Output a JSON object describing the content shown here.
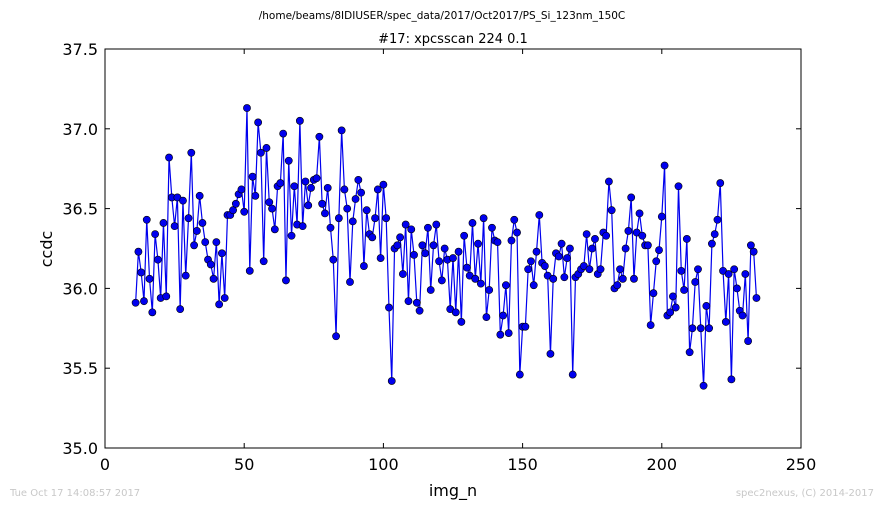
{
  "chart_data": {
    "type": "line",
    "suptitle": "/home/beams/8IDIUSER/spec_data/2017/Oct2017/PS_Si_123nm_150C",
    "title": "#17: xpcsscan 224 0.1",
    "xlabel": "img_n",
    "ylabel": "ccdc",
    "xlim": [
      0,
      250
    ],
    "ylim": [
      35.0,
      37.5
    ],
    "xticks": [
      0,
      50,
      100,
      150,
      200,
      250
    ],
    "xtick_labels": [
      "0",
      "50",
      "100",
      "150",
      "200",
      "250"
    ],
    "yticks": [
      35.0,
      35.5,
      36.0,
      36.5,
      37.0,
      37.5
    ],
    "ytick_labels": [
      "35.0",
      "35.5",
      "36.0",
      "36.5",
      "37.0",
      "37.5"
    ],
    "grid": false,
    "legend": "none",
    "series": [
      {
        "color": "#0000ee",
        "marker": "circle",
        "x": [
          11,
          12,
          13,
          14,
          15,
          16,
          17,
          18,
          19,
          20,
          21,
          22,
          23,
          24,
          25,
          26,
          27,
          28,
          29,
          30,
          31,
          32,
          33,
          34,
          35,
          36,
          37,
          38,
          39,
          40,
          41,
          42,
          43,
          44,
          45,
          46,
          47,
          48,
          49,
          50,
          51,
          52,
          53,
          54,
          55,
          56,
          57,
          58,
          59,
          60,
          61,
          62,
          63,
          64,
          65,
          66,
          67,
          68,
          69,
          70,
          71,
          72,
          73,
          74,
          75,
          76,
          77,
          78,
          79,
          80,
          81,
          82,
          83,
          84,
          85,
          86,
          87,
          88,
          89,
          90,
          91,
          92,
          93,
          94,
          95,
          96,
          97,
          98,
          99,
          100,
          101,
          102,
          103,
          104,
          105,
          106,
          107,
          108,
          109,
          110,
          111,
          112,
          113,
          114,
          115,
          116,
          117,
          118,
          119,
          120,
          121,
          122,
          123,
          124,
          125,
          126,
          127,
          128,
          129,
          130,
          131,
          132,
          133,
          134,
          135,
          136,
          137,
          138,
          139,
          140,
          141,
          142,
          143,
          144,
          145,
          146,
          147,
          148,
          149,
          150,
          151,
          152,
          153,
          154,
          155,
          156,
          157,
          158,
          159,
          160,
          161,
          162,
          163,
          164,
          165,
          166,
          167,
          168,
          169,
          170,
          171,
          172,
          173,
          174,
          175,
          176,
          177,
          178,
          179,
          180,
          181,
          182,
          183,
          184,
          185,
          186,
          187,
          188,
          189,
          190,
          191,
          192,
          193,
          194,
          195,
          196,
          197,
          198,
          199,
          200,
          201,
          202,
          203,
          204,
          205,
          206,
          207,
          208,
          209,
          210,
          211,
          212,
          213,
          214,
          215,
          216,
          217,
          218,
          219,
          220,
          221,
          222,
          223,
          224,
          225,
          226,
          227,
          228,
          229,
          230,
          231,
          232,
          233,
          234
        ],
        "y": [
          35.91,
          36.23,
          36.1,
          35.92,
          36.43,
          36.06,
          35.85,
          36.34,
          36.18,
          35.94,
          36.41,
          35.95,
          36.82,
          36.57,
          36.39,
          36.57,
          35.87,
          36.55,
          36.08,
          36.44,
          36.85,
          36.27,
          36.36,
          36.58,
          36.41,
          36.29,
          36.18,
          36.15,
          36.06,
          36.29,
          35.9,
          36.22,
          35.94,
          36.46,
          36.46,
          36.49,
          36.53,
          36.59,
          36.62,
          36.48,
          37.13,
          36.11,
          36.7,
          36.58,
          37.04,
          36.85,
          36.17,
          36.88,
          36.54,
          36.5,
          36.37,
          36.64,
          36.66,
          36.97,
          36.05,
          36.8,
          36.33,
          36.64,
          36.4,
          37.05,
          36.39,
          36.67,
          36.52,
          36.63,
          36.68,
          36.69,
          36.95,
          36.53,
          36.47,
          36.63,
          36.38,
          36.18,
          35.7,
          36.44,
          36.99,
          36.62,
          36.5,
          36.04,
          36.42,
          36.56,
          36.68,
          36.6,
          36.14,
          36.49,
          36.34,
          36.32,
          36.44,
          36.62,
          36.19,
          36.65,
          36.44,
          35.88,
          35.42,
          36.25,
          36.27,
          36.32,
          36.09,
          36.4,
          35.92,
          36.37,
          36.21,
          35.91,
          35.86,
          36.27,
          36.22,
          36.38,
          35.99,
          36.27,
          36.4,
          36.17,
          36.05,
          36.25,
          36.18,
          35.87,
          36.19,
          35.85,
          36.23,
          35.79,
          36.33,
          36.13,
          36.08,
          36.41,
          36.06,
          36.28,
          36.03,
          36.44,
          35.82,
          35.99,
          36.38,
          36.3,
          36.29,
          35.71,
          35.83,
          36.02,
          35.72,
          36.3,
          36.43,
          36.35,
          35.46,
          35.76,
          35.76,
          36.12,
          36.17,
          36.02,
          36.23,
          36.46,
          36.16,
          36.14,
          36.08,
          35.59,
          36.06,
          36.22,
          36.2,
          36.28,
          36.07,
          36.19,
          36.25,
          35.46,
          36.07,
          36.09,
          36.12,
          36.14,
          36.34,
          36.12,
          36.25,
          36.31,
          36.09,
          36.12,
          36.35,
          36.33,
          36.67,
          36.49,
          36.0,
          36.02,
          36.12,
          36.06,
          36.25,
          36.36,
          36.57,
          36.06,
          36.35,
          36.47,
          36.33,
          36.27,
          36.27,
          35.77,
          35.97,
          36.17,
          36.24,
          36.45,
          36.77,
          35.83,
          35.85,
          35.95,
          35.88,
          36.64,
          36.11,
          35.99,
          36.31,
          35.6,
          35.75,
          36.04,
          36.12,
          35.75,
          35.39,
          35.89,
          35.75,
          36.28,
          36.34,
          36.43,
          36.66,
          36.11,
          35.79,
          36.09,
          35.43,
          36.12,
          36.0,
          35.86,
          35.83,
          36.09,
          35.67,
          36.27,
          36.23,
          35.94
        ]
      }
    ]
  },
  "footer": {
    "timestamp": "Tue Oct 17 14:08:57 2017",
    "credit": "spec2nexus, (C) 2014-2017"
  }
}
